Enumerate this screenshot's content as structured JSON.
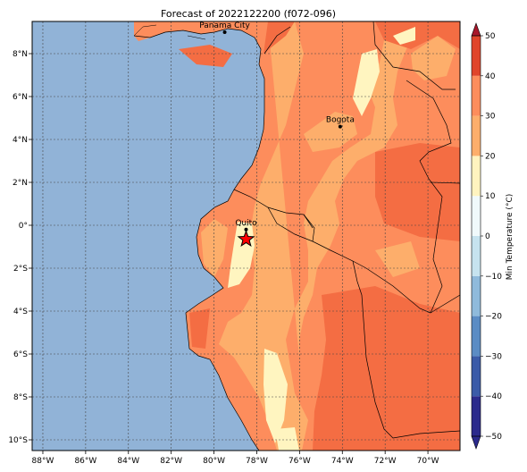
{
  "title": "Forecast of 2022122200 (f072-096)",
  "map": {
    "lon_range": [
      -88.5,
      -68.5
    ],
    "lat_range": [
      -10.5,
      9.5
    ],
    "lon_ticks": [
      {
        "value": -88,
        "label": "88°W"
      },
      {
        "value": -86,
        "label": "86°W"
      },
      {
        "value": -84,
        "label": "84°W"
      },
      {
        "value": -82,
        "label": "82°W"
      },
      {
        "value": -80,
        "label": "80°W"
      },
      {
        "value": -78,
        "label": "78°W"
      },
      {
        "value": -76,
        "label": "76°W"
      },
      {
        "value": -74,
        "label": "74°W"
      },
      {
        "value": -72,
        "label": "72°W"
      },
      {
        "value": -70,
        "label": "70°W"
      }
    ],
    "lat_ticks": [
      {
        "value": 8,
        "label": "8°N"
      },
      {
        "value": 6,
        "label": "6°N"
      },
      {
        "value": 4,
        "label": "4°N"
      },
      {
        "value": 2,
        "label": "2°N"
      },
      {
        "value": 0,
        "label": "0°"
      },
      {
        "value": -2,
        "label": "2°S"
      },
      {
        "value": -4,
        "label": "4°S"
      },
      {
        "value": -6,
        "label": "6°S"
      },
      {
        "value": -8,
        "label": "8°S"
      },
      {
        "value": -10,
        "label": "10°S"
      }
    ],
    "cities": [
      {
        "name": "Panama City",
        "lon": -79.5,
        "lat": 9.0
      },
      {
        "name": "Bogota",
        "lon": -74.1,
        "lat": 4.6
      },
      {
        "name": "Quito",
        "lon": -78.5,
        "lat": -0.2
      }
    ],
    "marker": {
      "symbol": "star",
      "lon": -78.5,
      "lat": -0.65,
      "color": "#ff0000"
    },
    "colors": {
      "ocean": "#91b3d7",
      "land_base": "#fd8d5c",
      "band_10_20": "#fdae6b",
      "band_20_30": "#fd8d5c",
      "band_30_40": "#f46d43",
      "band_0_10": "#fff5c0"
    }
  },
  "colorbar": {
    "label": "Min Temperature (°C)",
    "ticks": [
      -50,
      -40,
      -30,
      -20,
      -10,
      0,
      10,
      20,
      30,
      40,
      50
    ],
    "tick_labels": [
      "−50",
      "−40",
      "−30",
      "−20",
      "−10",
      "0",
      "10",
      "20",
      "30",
      "40",
      "50"
    ],
    "colors": [
      "#2b2a8c",
      "#3b5ba8",
      "#5b8cc4",
      "#8fbadb",
      "#c6e3ef",
      "#f0f9fb",
      "#fff3bf",
      "#fdae6b",
      "#fd8d5c",
      "#e0452b",
      "#a8172a"
    ]
  }
}
